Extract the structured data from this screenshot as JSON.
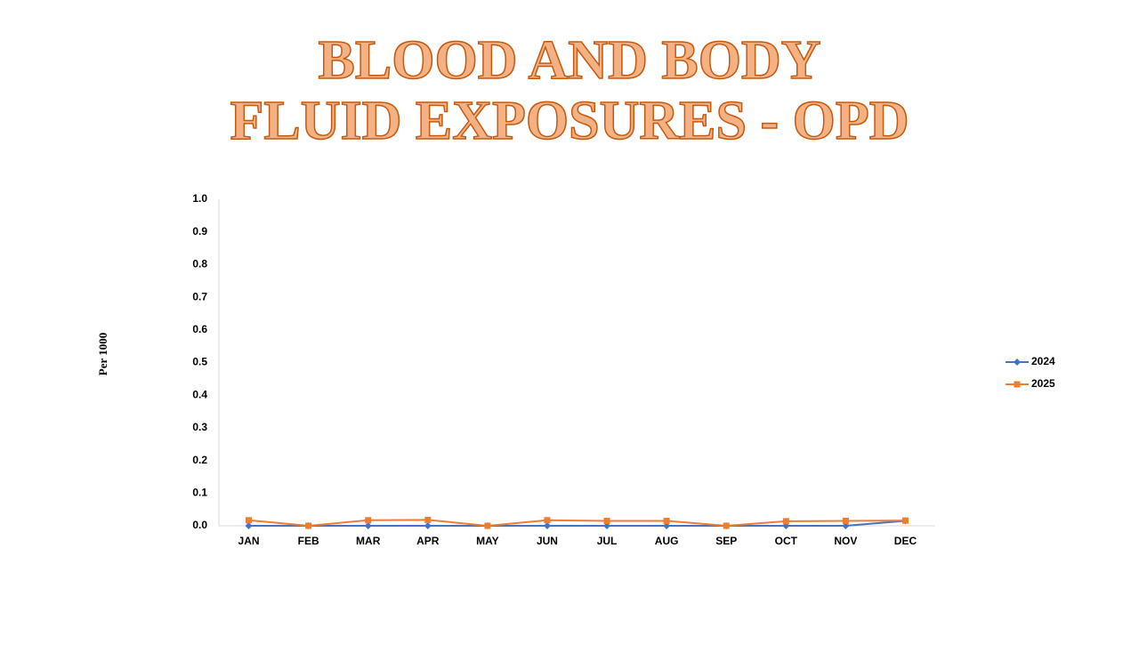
{
  "chart_data": {
    "type": "line",
    "title": [
      "BLOOD AND BODY",
      "FLUID EXPOSURES - OPD"
    ],
    "y_label": "Per 1000",
    "categories": [
      "JAN",
      "FEB",
      "MAR",
      "APR",
      "MAY",
      "JUN",
      "JUL",
      "AUG",
      "SEP",
      "OCT",
      "NOV",
      "DEC"
    ],
    "series": [
      {
        "name": "2024",
        "color": "#4472c4",
        "marker": "diamond",
        "values": [
          0,
          0,
          0,
          0,
          0,
          0,
          0,
          0,
          0,
          0,
          0,
          0.015
        ]
      },
      {
        "name": "2025",
        "color": "#ed7d31",
        "marker": "square",
        "values": [
          0.017,
          0,
          0.017,
          0.018,
          0,
          0.017,
          0.015,
          0.015,
          0,
          0.014,
          0.015,
          0.016
        ]
      }
    ],
    "ylim": [
      0,
      1
    ],
    "yticks": [
      {
        "value": 0,
        "label": "0.0"
      },
      0.1,
      0.2,
      0.3,
      0.4,
      0.5,
      0.6,
      0.7,
      0.8,
      0.9,
      {
        "value": 1,
        "label": "1.0"
      }
    ],
    "grid": false,
    "legend": "right"
  }
}
